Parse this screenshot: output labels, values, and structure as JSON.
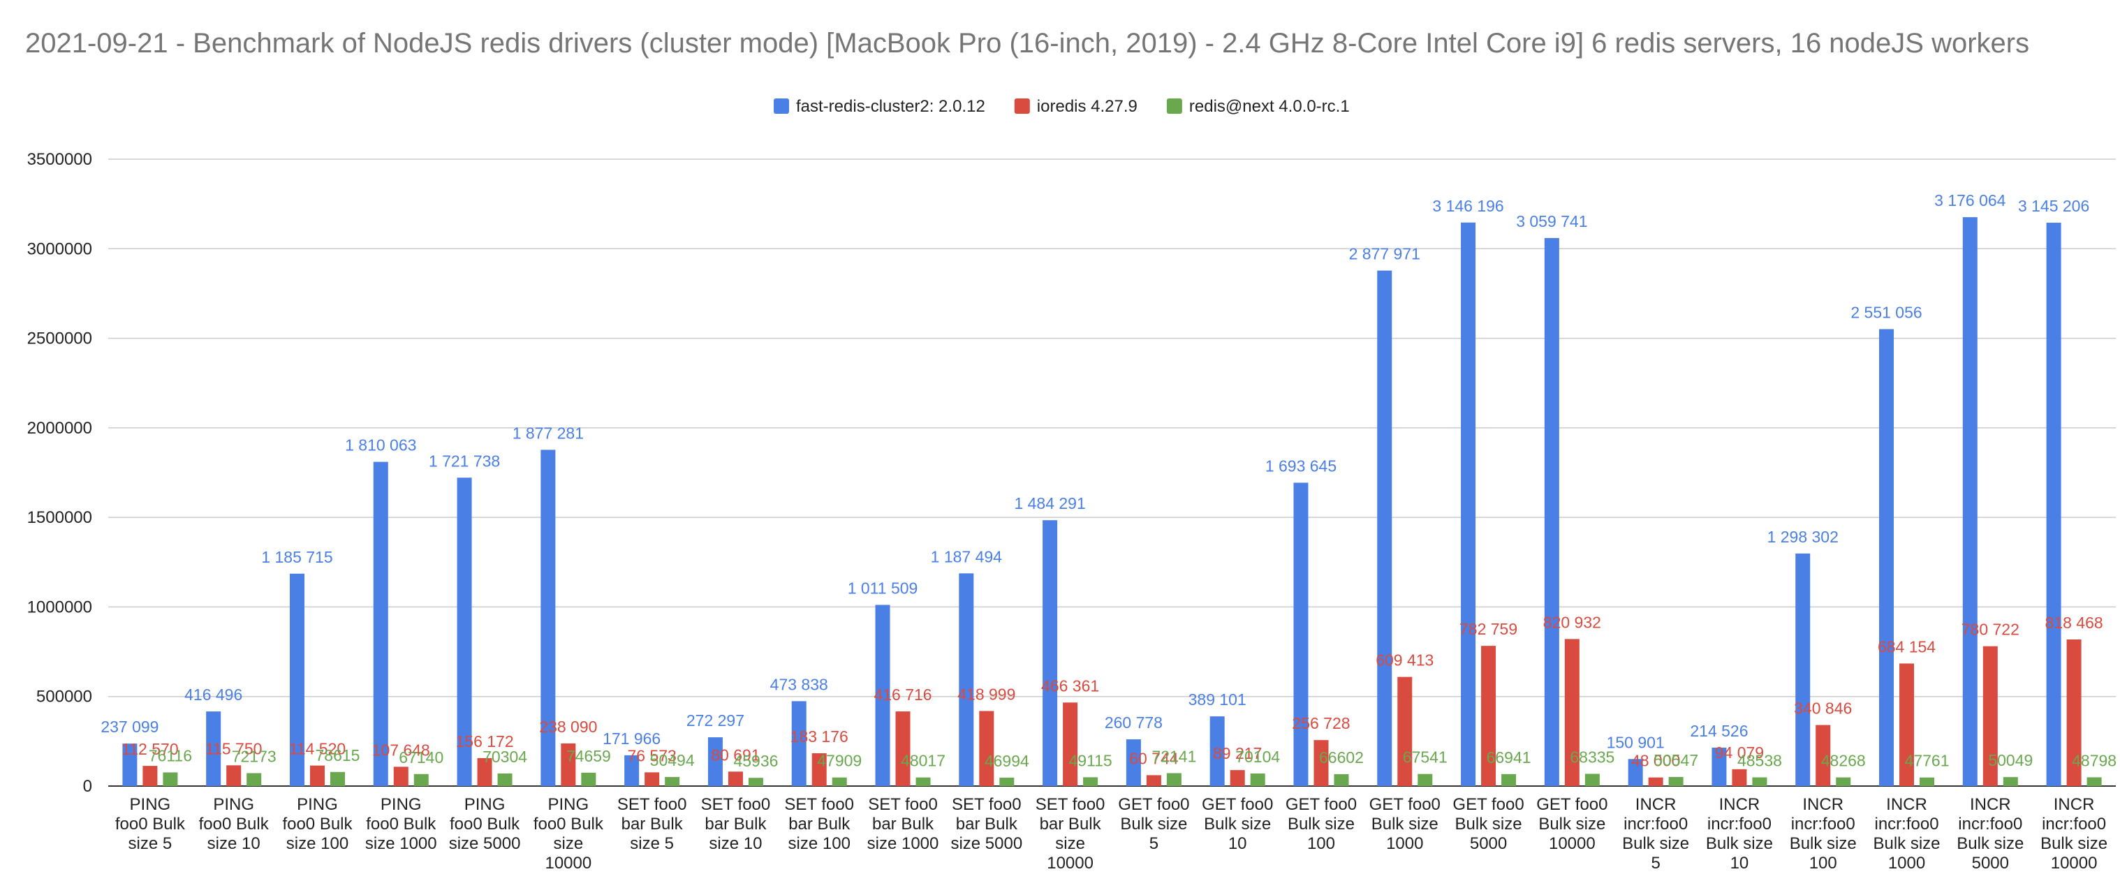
{
  "chart_data": {
    "type": "bar",
    "title": "2021-09-21 - Benchmark of NodeJS redis drivers (cluster mode) [MacBook Pro (16-inch, 2019) - 2.4 GHz 8-Core Intel Core i9] 6 redis servers, 16 nodeJS workers",
    "xlabel": "",
    "ylabel": "",
    "ylim": [
      0,
      3500000
    ],
    "yticks": [
      "0",
      "500000",
      "1000000",
      "1500000",
      "2000000",
      "2500000",
      "3000000",
      "3500000"
    ],
    "grid": true,
    "legend_position": "top-center",
    "categories": [
      [
        "PING",
        "foo0 Bulk",
        "size 5"
      ],
      [
        "PING",
        "foo0 Bulk",
        "size 10"
      ],
      [
        "PING",
        "foo0 Bulk",
        "size 100"
      ],
      [
        "PING",
        "foo0 Bulk",
        "size 1000"
      ],
      [
        "PING",
        "foo0 Bulk",
        "size 5000"
      ],
      [
        "PING",
        "foo0 Bulk",
        "size",
        "10000"
      ],
      [
        "SET foo0",
        "bar Bulk",
        "size 5"
      ],
      [
        "SET foo0",
        "bar Bulk",
        "size 10"
      ],
      [
        "SET foo0",
        "bar Bulk",
        "size 100"
      ],
      [
        "SET foo0",
        "bar Bulk",
        "size 1000"
      ],
      [
        "SET foo0",
        "bar Bulk",
        "size 5000"
      ],
      [
        "SET foo0",
        "bar Bulk",
        "size",
        "10000"
      ],
      [
        "GET foo0",
        "Bulk size",
        "5"
      ],
      [
        "GET foo0",
        "Bulk size",
        "10"
      ],
      [
        "GET foo0",
        "Bulk size",
        "100"
      ],
      [
        "GET foo0",
        "Bulk size",
        "1000"
      ],
      [
        "GET foo0",
        "Bulk size",
        "5000"
      ],
      [
        "GET foo0",
        "Bulk size",
        "10000"
      ],
      [
        "INCR",
        "incr:foo0",
        "Bulk size",
        "5"
      ],
      [
        "INCR",
        "incr:foo0",
        "Bulk size",
        "10"
      ],
      [
        "INCR",
        "incr:foo0",
        "Bulk size",
        "100"
      ],
      [
        "INCR",
        "incr:foo0",
        "Bulk size",
        "1000"
      ],
      [
        "INCR",
        "incr:foo0",
        "Bulk size",
        "5000"
      ],
      [
        "INCR",
        "incr:foo0",
        "Bulk size",
        "10000"
      ]
    ],
    "series": [
      {
        "name": "fast-redis-cluster2: 2.0.12",
        "color": "#4a7fe5",
        "values": [
          237099,
          416496,
          1185715,
          1810063,
          1721738,
          1877281,
          171966,
          272297,
          473838,
          1011509,
          1187494,
          1484291,
          260778,
          389101,
          1693645,
          2877971,
          3146196,
          3059741,
          150901,
          214526,
          1298302,
          2551056,
          3176064,
          3145206
        ],
        "labels": [
          "237 099",
          "416 496",
          "1 185 715",
          "1 810 063",
          "1 721 738",
          "1 877 281",
          "171 966",
          "272 297",
          "473 838",
          "1 011 509",
          "1 187 494",
          "1 484 291",
          "260 778",
          "389 101",
          "1 693 645",
          "2 877 971",
          "3 146 196",
          "3 059 741",
          "150 901",
          "214 526",
          "1 298 302",
          "2 551 056",
          "3 176 064",
          "3 145 206"
        ]
      },
      {
        "name": "ioredis 4.27.9",
        "color": "#d94b3f",
        "values": [
          112570,
          115750,
          114520,
          107648,
          156172,
          238090,
          76573,
          80691,
          183176,
          416716,
          418999,
          466361,
          60744,
          89217,
          256728,
          609413,
          782759,
          820932,
          48000,
          94079,
          340846,
          684154,
          780722,
          818468
        ],
        "labels": [
          "112 570",
          "115 750",
          "114 520",
          "107 648",
          "156 172",
          "238 090",
          "76 573",
          "80 691",
          "183 176",
          "416 716",
          "418 999",
          "466 361",
          "60 744",
          "89 217",
          "256 728",
          "609 413",
          "782 759",
          "820 932",
          "48 000",
          "94 079",
          "340 846",
          "684 154",
          "780 722",
          "818 468"
        ]
      },
      {
        "name": "redis@next 4.0.0-rc.1",
        "color": "#6aa84f",
        "values": [
          76116,
          72173,
          78615,
          67140,
          70304,
          74659,
          50494,
          45936,
          47909,
          48017,
          46994,
          49115,
          72141,
          70104,
          66602,
          67541,
          66941,
          68335,
          50547,
          48538,
          48268,
          47761,
          50049,
          48798
        ],
        "labels": [
          "76116",
          "72173",
          "78615",
          "67140",
          "70304",
          "74659",
          "50494",
          "45936",
          "47909",
          "48017",
          "46994",
          "49115",
          "72141",
          "70104",
          "66602",
          "67541",
          "66941",
          "68335",
          "50547",
          "48538",
          "48268",
          "47761",
          "50049",
          "48798"
        ]
      }
    ]
  }
}
